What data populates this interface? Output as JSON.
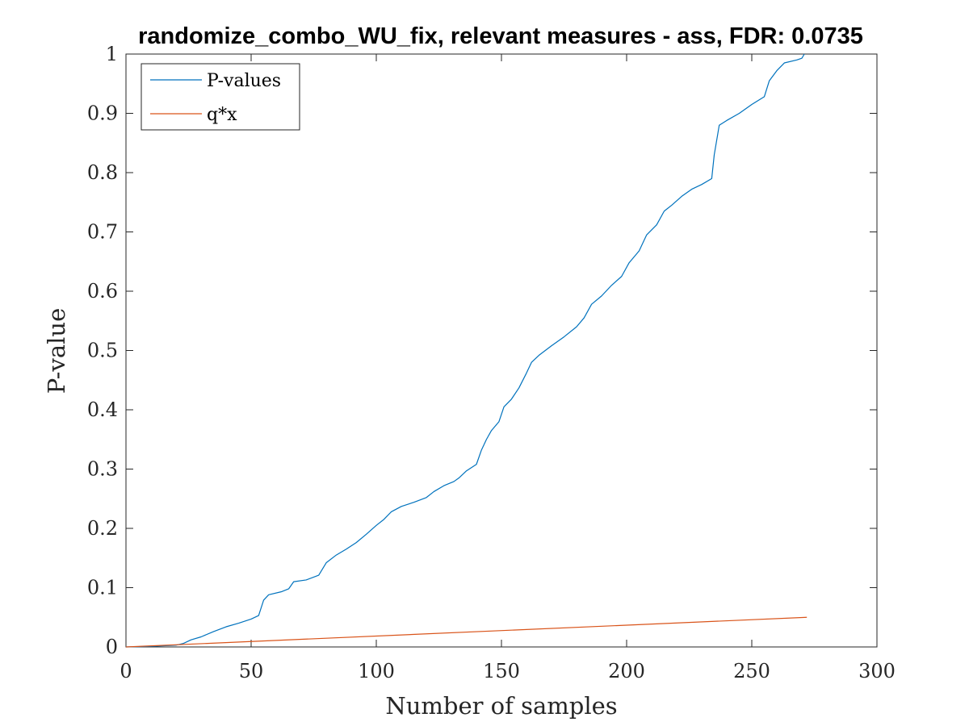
{
  "chart_data": {
    "type": "line",
    "title": "randomize_combo_WU_fix, relevant measures - ass, FDR: 0.0735",
    "xlabel": "Number of samples",
    "ylabel": "P-value",
    "xlim": [
      0,
      300
    ],
    "ylim": [
      0,
      1
    ],
    "xticks": [
      "0",
      "50",
      "100",
      "150",
      "200",
      "250",
      "300"
    ],
    "yticks": [
      "0",
      "0.1",
      "0.2",
      "0.3",
      "0.4",
      "0.5",
      "0.6",
      "0.7",
      "0.8",
      "0.9",
      "1"
    ],
    "grid": false,
    "legend_position": "top-left",
    "series": [
      {
        "name": "P-values",
        "color": "#0072BD",
        "points": [
          [
            0,
            0.0
          ],
          [
            10,
            0.001
          ],
          [
            20,
            0.003
          ],
          [
            23,
            0.006
          ],
          [
            26,
            0.012
          ],
          [
            30,
            0.017
          ],
          [
            35,
            0.026
          ],
          [
            40,
            0.034
          ],
          [
            45,
            0.04
          ],
          [
            50,
            0.047
          ],
          [
            53,
            0.053
          ],
          [
            55,
            0.079
          ],
          [
            57,
            0.088
          ],
          [
            62,
            0.093
          ],
          [
            65,
            0.098
          ],
          [
            67,
            0.11
          ],
          [
            72,
            0.113
          ],
          [
            77,
            0.121
          ],
          [
            80,
            0.142
          ],
          [
            84,
            0.155
          ],
          [
            88,
            0.165
          ],
          [
            92,
            0.176
          ],
          [
            96,
            0.19
          ],
          [
            100,
            0.205
          ],
          [
            103,
            0.215
          ],
          [
            106,
            0.228
          ],
          [
            110,
            0.237
          ],
          [
            115,
            0.244
          ],
          [
            120,
            0.252
          ],
          [
            123,
            0.262
          ],
          [
            127,
            0.272
          ],
          [
            131,
            0.279
          ],
          [
            133,
            0.285
          ],
          [
            136,
            0.297
          ],
          [
            140,
            0.308
          ],
          [
            142,
            0.332
          ],
          [
            144,
            0.35
          ],
          [
            146,
            0.365
          ],
          [
            149,
            0.38
          ],
          [
            151,
            0.405
          ],
          [
            154,
            0.418
          ],
          [
            157,
            0.437
          ],
          [
            160,
            0.462
          ],
          [
            162,
            0.48
          ],
          [
            165,
            0.492
          ],
          [
            170,
            0.508
          ],
          [
            175,
            0.523
          ],
          [
            180,
            0.54
          ],
          [
            183,
            0.555
          ],
          [
            186,
            0.578
          ],
          [
            190,
            0.592
          ],
          [
            194,
            0.61
          ],
          [
            198,
            0.625
          ],
          [
            201,
            0.648
          ],
          [
            205,
            0.668
          ],
          [
            208,
            0.695
          ],
          [
            212,
            0.712
          ],
          [
            215,
            0.735
          ],
          [
            218,
            0.745
          ],
          [
            222,
            0.76
          ],
          [
            226,
            0.772
          ],
          [
            230,
            0.78
          ],
          [
            234,
            0.79
          ],
          [
            235,
            0.83
          ],
          [
            237,
            0.88
          ],
          [
            240,
            0.888
          ],
          [
            245,
            0.9
          ],
          [
            250,
            0.915
          ],
          [
            255,
            0.928
          ],
          [
            257,
            0.955
          ],
          [
            260,
            0.972
          ],
          [
            263,
            0.985
          ],
          [
            268,
            0.99
          ],
          [
            270,
            0.993
          ],
          [
            271,
            1.0
          ]
        ]
      },
      {
        "name": "q*x",
        "color": "#D95319",
        "points": [
          [
            0,
            0.0
          ],
          [
            272,
            0.05
          ]
        ]
      }
    ]
  }
}
